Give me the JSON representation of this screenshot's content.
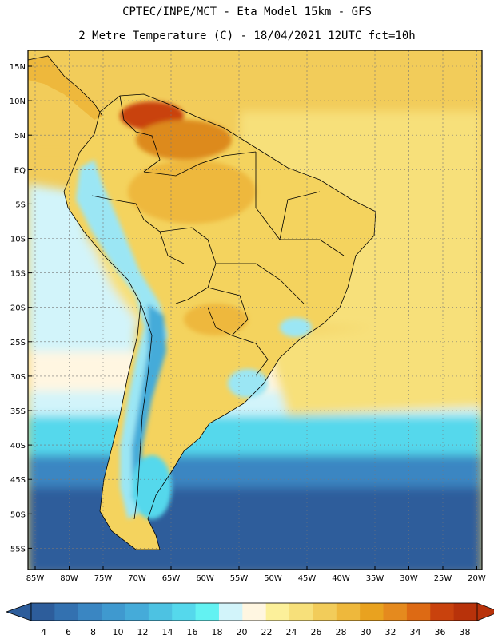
{
  "header": {
    "line1": "CPTEC/INPE/MCT -  Eta Model 15km - GFS",
    "line2": "2 Metre Temperature (C) - 18/04/2021 12UTC fct=10h"
  },
  "lat_labels": [
    "15N",
    "10N",
    "5N",
    "EQ",
    "5S",
    "10S",
    "15S",
    "20S",
    "25S",
    "30S",
    "35S",
    "40S",
    "45S",
    "50S",
    "55S"
  ],
  "lon_labels": [
    "85W",
    "80W",
    "75W",
    "70W",
    "65W",
    "60W",
    "55W",
    "50W",
    "45W",
    "40W",
    "35W",
    "30W",
    "25W",
    "20W"
  ],
  "colorbar": {
    "ticks": [
      "4",
      "6",
      "8",
      "10",
      "12",
      "14",
      "16",
      "18",
      "20",
      "22",
      "24",
      "26",
      "28",
      "30",
      "32",
      "34",
      "36",
      "38"
    ],
    "colors": [
      "#2d5d9b",
      "#3371b0",
      "#3a86c2",
      "#3f99cf",
      "#45abd9",
      "#4dc2e2",
      "#55d8ec",
      "#63f2f2",
      "#d2f4fa",
      "#fff6e1",
      "#fcf09a",
      "#f7e07a",
      "#f2cc5a",
      "#eeb83c",
      "#e9a21f",
      "#e58a1e",
      "#dd6a14",
      "#c9420d",
      "#b8320a"
    ],
    "low_arrow_color": "#2d5d9b",
    "high_arrow_color": "#b8320a"
  },
  "palette": {
    "ocean_deep": "#2d5d9b",
    "ocean_mid": "#3a86c2",
    "ocean_cyan": "#55d8ec",
    "ocean_light": "#d2f4fa",
    "ocean_cream": "#fff6e1",
    "ocean_warm": "#f7e07a",
    "ocean_warmer": "#f2cc5a",
    "land_base": "#f4d35e",
    "land_hot": "#eeb83c",
    "land_hotter": "#dd8a1e",
    "land_hottest": "#c9420d",
    "andes_cold": "#45abd9",
    "andes_cool": "#9be6f4"
  }
}
